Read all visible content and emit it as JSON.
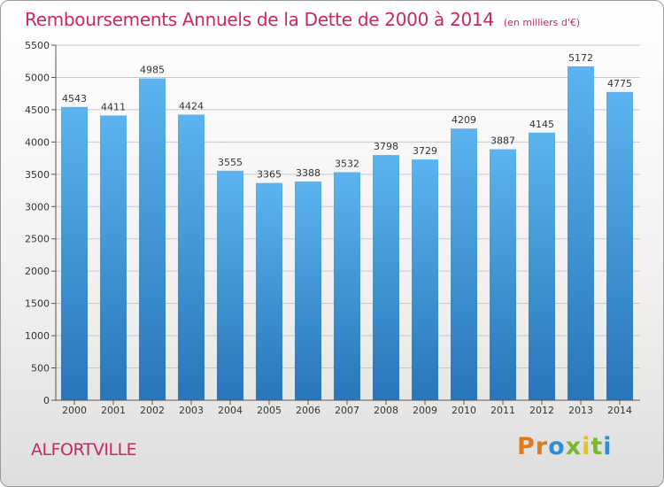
{
  "header": {
    "title": "Remboursements Annuels de la Dette de 2000 à 2014",
    "unit_note": "(en milliers d'€)"
  },
  "footer": {
    "city": "ALFORTVILLE",
    "logo_text": "Proxiti"
  },
  "colors": {
    "title": "#c8285a",
    "bar_top": "#5cb3ef",
    "bar_bottom": "#2876b8",
    "grid": "#c8c8c8"
  },
  "chart_data": {
    "type": "bar",
    "categories": [
      "2000",
      "2001",
      "2002",
      "2003",
      "2004",
      "2005",
      "2006",
      "2007",
      "2008",
      "2009",
      "2010",
      "2011",
      "2012",
      "2013",
      "2014"
    ],
    "values": [
      4543,
      4411,
      4985,
      4424,
      3555,
      3365,
      3388,
      3532,
      3798,
      3729,
      4209,
      3887,
      4145,
      5172,
      4775
    ],
    "ylim": [
      0,
      5500
    ],
    "yticks": [
      0,
      500,
      1000,
      1500,
      2000,
      2500,
      3000,
      3500,
      4000,
      4500,
      5000,
      5500
    ],
    "grid": true,
    "xlabel": "",
    "ylabel": ""
  }
}
